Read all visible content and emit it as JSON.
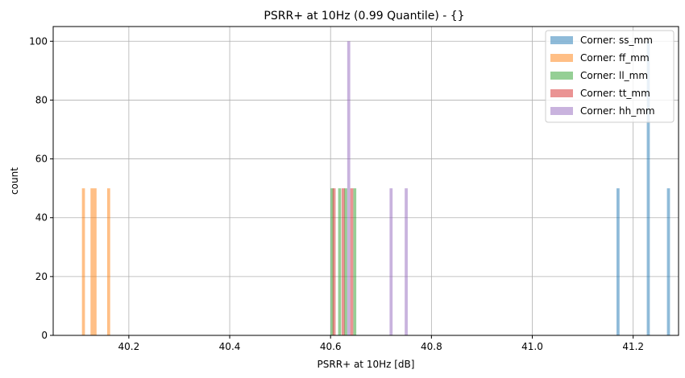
{
  "chart_data": {
    "type": "bar",
    "title": "PSRR+ at 10Hz (0.99 Quantile) - {}",
    "xlabel": "PSRR+ at 10Hz [dB]",
    "ylabel": "count",
    "xlim": [
      40.05,
      41.29
    ],
    "ylim": [
      0,
      105
    ],
    "bar_width": 0.006,
    "x_ticks": [
      40.2,
      40.4,
      40.6,
      40.8,
      41.0,
      41.2
    ],
    "x_tick_labels": [
      "40.2",
      "40.4",
      "40.6",
      "40.8",
      "41.0",
      "41.2"
    ],
    "y_ticks": [
      0,
      20,
      40,
      60,
      80,
      100
    ],
    "y_tick_labels": [
      "0",
      "20",
      "40",
      "60",
      "80",
      "100"
    ],
    "grid": true,
    "legend_position": "top-right",
    "series": [
      {
        "name": "Corner: ss_mm",
        "color": "#1f77b4",
        "x": [
          41.17,
          41.23,
          41.27
        ],
        "values": [
          50,
          100,
          50
        ]
      },
      {
        "name": "Corner: ff_mm",
        "color": "#ff7f0e",
        "x": [
          40.11,
          40.127,
          40.133,
          40.16
        ],
        "values": [
          50,
          50,
          50,
          50
        ]
      },
      {
        "name": "Corner: ll_mm",
        "color": "#2ca02c",
        "x": [
          40.603,
          40.618,
          40.63,
          40.648
        ],
        "values": [
          50,
          50,
          50,
          50
        ]
      },
      {
        "name": "Corner: tt_mm",
        "color": "#d62728",
        "x": [
          40.607,
          40.625,
          40.642
        ],
        "values": [
          50,
          50,
          50
        ]
      },
      {
        "name": "Corner: hh_mm",
        "color": "#9467bd",
        "x": [
          40.636,
          40.72,
          40.75
        ],
        "values": [
          100,
          50,
          50
        ]
      }
    ]
  }
}
